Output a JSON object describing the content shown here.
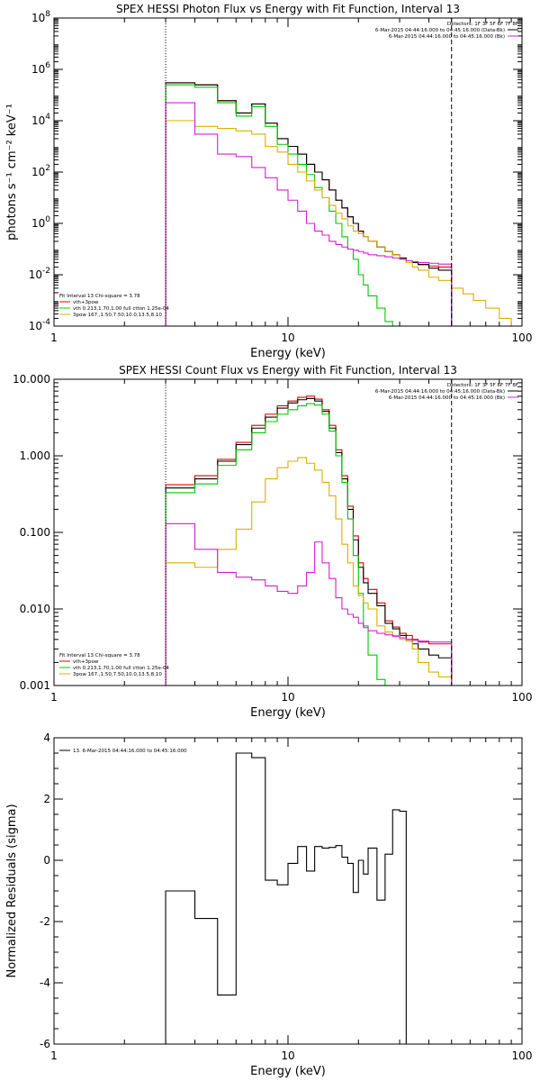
{
  "chart_data": [
    {
      "type": "step",
      "title": "SPEX HESSI Photon Flux vs Energy with Fit Function, Interval 13",
      "xlabel": "Energy (keV)",
      "ylabel": "photons s⁻¹ cm⁻² keV⁻¹",
      "xscale": "log",
      "yscale": "log",
      "xlim": [
        1,
        100
      ],
      "ylim": [
        0.0001,
        100000000
      ],
      "xticks": [
        {
          "v": 1,
          "label": "1"
        },
        {
          "v": 10,
          "label": "10"
        },
        {
          "v": 100,
          "label": "100"
        }
      ],
      "yticks": [
        {
          "v": 0.0001,
          "base": "10",
          "exp": "-4"
        },
        {
          "v": 0.01,
          "base": "10",
          "exp": "-2"
        },
        {
          "v": 1,
          "base": "10",
          "exp": "0"
        },
        {
          "v": 100,
          "base": "10",
          "exp": "2"
        },
        {
          "v": 10000,
          "base": "10",
          "exp": "4"
        },
        {
          "v": 1000000,
          "base": "10",
          "exp": "6"
        },
        {
          "v": 100000000,
          "base": "10",
          "exp": "8"
        }
      ],
      "vlines": [
        {
          "x": 3,
          "style": "dotted",
          "color": "#000000"
        },
        {
          "x": 50,
          "style": "dashed",
          "color": "#000000"
        }
      ],
      "legend_right": [
        {
          "text": "Detectors: 1F 3F 5F 6F 7F 8F",
          "color": null
        },
        {
          "text": "6-Mar-2015 04:44:16.000 to 04:45:16.000 (Data-Bk)",
          "color": "#000000"
        },
        {
          "text": "6-Mar-2015 04:44:16.000 to 04:45:16.000 (Bk)",
          "color": "#d020d0"
        }
      ],
      "legend_left": [
        {
          "text": "Fit Interval 13   Chi-square = 3.78",
          "color": null
        },
        {
          "text": "vth+3pow",
          "color": "#e00000"
        },
        {
          "text": "vth 0.213,1.70,1.00  full ctton 1.25e-04",
          "color": "#00c800"
        },
        {
          "text": "3pow 167.,1.50,7.50,10.0,13.5,8.10",
          "color": "#d8b000"
        }
      ],
      "edges": [
        3,
        4,
        5,
        6,
        7,
        8,
        9,
        10,
        11,
        12,
        13,
        14,
        15,
        16,
        17,
        18,
        19,
        20,
        21,
        22,
        24,
        26,
        28,
        30,
        32,
        34,
        36,
        40,
        44,
        50,
        56,
        62,
        70,
        80,
        90
      ],
      "series": [
        {
          "color": "#e00000",
          "role": "fit-total",
          "values": [
            300000,
            250000,
            60000,
            20000,
            45000,
            8000,
            2000,
            1000,
            500,
            200,
            100,
            50,
            20,
            8,
            4,
            1.8,
            1.0,
            0.5,
            0.3,
            0.2,
            0.12,
            0.08,
            0.06,
            0.045,
            0.035,
            0.03,
            0.025,
            0.022,
            0.02,
            null,
            null,
            null,
            null,
            null
          ]
        },
        {
          "color": "#000000",
          "role": "data-minus-bk",
          "values": [
            300000,
            250000,
            60000,
            20000,
            45000,
            8000,
            2000,
            1000,
            500,
            200,
            100,
            50,
            20,
            8,
            4,
            1.8,
            1.0,
            0.5,
            0.3,
            0.2,
            0.12,
            0.08,
            0.06,
            0.045,
            0.035,
            0.03,
            0.025,
            0.018,
            0.015,
            null,
            null,
            null,
            null,
            null
          ]
        },
        {
          "color": "#00c800",
          "role": "vth",
          "values": [
            250000,
            200000,
            50000,
            15000,
            35000,
            6000,
            1200,
            500,
            200,
            80,
            25,
            10,
            3,
            1.0,
            0.3,
            0.1,
            0.04,
            0.01,
            0.004,
            0.0015,
            0.0005,
            0.00015,
            null,
            null,
            null,
            null,
            null,
            null,
            null,
            null,
            null,
            null,
            null,
            null
          ]
        },
        {
          "color": "#d8b000",
          "role": "3pow",
          "values": [
            10000,
            6000,
            5000,
            4000,
            3000,
            1000,
            600,
            200,
            100,
            45,
            20,
            10,
            5,
            2.5,
            1.5,
            0.8,
            0.5,
            0.4,
            0.3,
            0.2,
            0.12,
            0.08,
            0.06,
            0.04,
            0.03,
            0.02,
            0.015,
            0.008,
            0.006,
            0.003,
            0.0018,
            0.001,
            0.0005,
            0.0002
          ]
        },
        {
          "color": "#d020d0",
          "role": "background",
          "values": [
            50000,
            3000,
            500,
            400,
            150,
            60,
            20,
            8,
            3,
            1.0,
            0.5,
            0.35,
            0.2,
            0.15,
            0.12,
            0.1,
            0.09,
            0.08,
            0.07,
            0.06,
            0.055,
            0.05,
            0.045,
            0.04,
            0.035,
            0.032,
            0.03,
            0.028,
            0.026,
            null,
            null,
            null,
            null,
            null
          ]
        }
      ]
    },
    {
      "type": "step",
      "title": "SPEX HESSI Count Flux vs Energy with Fit Function, Interval 13",
      "xlabel": "Energy (keV)",
      "ylabel": "",
      "xscale": "log",
      "yscale": "log",
      "xlim": [
        1,
        100
      ],
      "ylim": [
        0.001,
        10
      ],
      "xticks": [
        {
          "v": 1,
          "label": "1"
        },
        {
          "v": 10,
          "label": "10"
        },
        {
          "v": 100,
          "label": "100"
        }
      ],
      "yticks": [
        {
          "v": 0.001,
          "label": "0.001"
        },
        {
          "v": 0.01,
          "label": "0.010"
        },
        {
          "v": 0.1,
          "label": "0.100"
        },
        {
          "v": 1,
          "label": "1.000"
        },
        {
          "v": 10,
          "label": "10.000"
        }
      ],
      "vlines": [
        {
          "x": 3,
          "style": "dotted",
          "color": "#000000"
        },
        {
          "x": 50,
          "style": "dashed",
          "color": "#000000"
        }
      ],
      "legend_right": [
        {
          "text": "Detectors: 1F 3F 5F 6F 7F 8F",
          "color": null
        },
        {
          "text": "6-Mar-2015 04:44:16.000 to 04:45:16.000 (Data-Bk)",
          "color": "#000000"
        },
        {
          "text": "6-Mar-2015 04:44:16.000 to 04:45:16.000 (Bk)",
          "color": "#d020d0"
        }
      ],
      "legend_left": [
        {
          "text": "Fit Interval 13   Chi-square = 3.78",
          "color": null
        },
        {
          "text": "vth+3pow",
          "color": "#e00000"
        },
        {
          "text": "vth 0.213,1.70,1.00  full ctton 1.25e-04",
          "color": "#00c800"
        },
        {
          "text": "3pow 167.,1.50,7.50,10.0,13.5,8.10",
          "color": "#d8b000"
        }
      ],
      "edges": [
        3,
        4,
        5,
        6,
        7,
        8,
        9,
        10,
        11,
        12,
        13,
        14,
        15,
        16,
        17,
        18,
        19,
        20,
        21,
        22,
        24,
        26,
        28,
        30,
        32,
        34,
        36,
        40,
        44,
        50
      ],
      "series": [
        {
          "color": "#e00000",
          "role": "fit-total",
          "values": [
            0.42,
            0.55,
            0.9,
            1.5,
            2.5,
            3.5,
            4.5,
            5.2,
            5.8,
            6.0,
            5.5,
            4.0,
            2.5,
            1.2,
            0.55,
            0.22,
            0.09,
            0.04,
            0.025,
            0.018,
            0.012,
            0.007,
            0.0058,
            0.0048,
            0.0045,
            0.004,
            0.0037,
            0.0035,
            0.0035
          ]
        },
        {
          "color": "#000000",
          "role": "data-minus-bk",
          "values": [
            0.38,
            0.5,
            0.85,
            1.4,
            2.3,
            3.2,
            4.2,
            4.9,
            5.4,
            5.6,
            5.2,
            3.8,
            2.3,
            1.1,
            0.5,
            0.2,
            0.08,
            0.035,
            0.022,
            0.016,
            0.011,
            0.0065,
            0.0055,
            0.0045,
            0.004,
            0.0035,
            0.003,
            0.0025,
            0.0023
          ]
        },
        {
          "color": "#00c800",
          "role": "vth",
          "values": [
            0.33,
            0.43,
            0.75,
            1.2,
            2.0,
            2.8,
            3.5,
            4.0,
            4.5,
            4.8,
            4.6,
            3.5,
            2.1,
            1.0,
            0.45,
            0.15,
            0.05,
            0.016,
            0.006,
            0.0025,
            0.0012,
            null,
            null,
            null,
            null,
            null,
            null,
            null,
            null
          ]
        },
        {
          "color": "#d8b000",
          "role": "3pow",
          "values": [
            0.04,
            0.035,
            0.06,
            0.11,
            0.25,
            0.5,
            0.7,
            0.85,
            0.95,
            0.8,
            0.65,
            0.45,
            0.3,
            0.15,
            0.07,
            0.04,
            0.02,
            0.015,
            0.012,
            0.01,
            0.006,
            0.005,
            0.0045,
            0.004,
            0.0038,
            0.003,
            0.002,
            0.0015,
            0.0013
          ]
        },
        {
          "color": "#d020d0",
          "role": "background",
          "values": [
            0.13,
            0.06,
            0.03,
            0.026,
            0.024,
            0.02,
            0.017,
            0.016,
            0.02,
            0.03,
            0.075,
            0.04,
            0.025,
            0.014,
            0.01,
            0.0085,
            0.0078,
            0.0065,
            0.0057,
            0.0052,
            0.0048,
            0.0046,
            0.0044,
            0.0042,
            0.004,
            0.0039,
            0.0038,
            0.0037,
            0.0037
          ]
        }
      ]
    },
    {
      "type": "step",
      "title": "",
      "xlabel": "Energy (keV)",
      "ylabel": "Normalized Residuals (sigma)",
      "xscale": "log",
      "yscale": "linear",
      "xlim": [
        1,
        100
      ],
      "ylim": [
        -6,
        4
      ],
      "xticks": [
        {
          "v": 1,
          "label": "1"
        },
        {
          "v": 10,
          "label": "10"
        },
        {
          "v": 100,
          "label": "100"
        }
      ],
      "yticks": [
        {
          "v": -6,
          "label": "-6"
        },
        {
          "v": -4,
          "label": "-4"
        },
        {
          "v": -2,
          "label": "-2"
        },
        {
          "v": 0,
          "label": "0"
        },
        {
          "v": 2,
          "label": "2"
        },
        {
          "v": 4,
          "label": "4"
        }
      ],
      "vlines": [],
      "legend_right": [],
      "legend_left": [
        {
          "text": "13.  6-Mar-2015 04:44:16.000 to 04:45:16.000",
          "color": "#000000"
        }
      ],
      "edges": [
        3,
        4,
        5,
        6,
        7,
        8,
        9,
        10,
        11,
        12,
        13,
        14,
        15,
        16,
        17,
        18,
        19,
        20,
        21,
        22,
        24,
        26,
        28,
        30,
        32,
        34,
        36,
        40,
        44,
        50
      ],
      "series": [
        {
          "color": "#000000",
          "role": "residuals",
          "values": [
            -1.0,
            -1.9,
            -4.4,
            3.5,
            3.35,
            -0.65,
            -0.8,
            -0.1,
            0.45,
            -0.35,
            0.45,
            0.4,
            0.42,
            0.48,
            0.1,
            -0.1,
            -1.05,
            0.0,
            -0.45,
            0.4,
            -1.3,
            0.2,
            1.65,
            1.6,
            null,
            null,
            null,
            null,
            null
          ]
        }
      ]
    }
  ]
}
